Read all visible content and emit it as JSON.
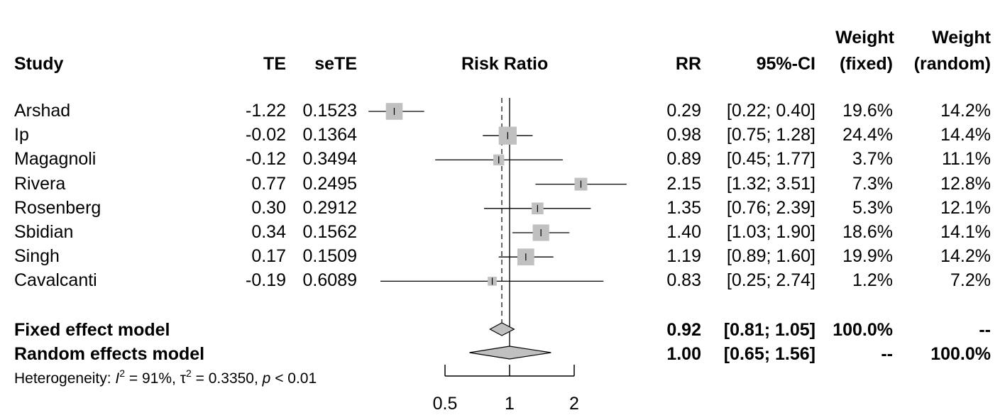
{
  "chart_data": {
    "type": "forest",
    "columns": {
      "study": "Study",
      "te": "TE",
      "sete": "seTE",
      "plot": "Risk Ratio",
      "rr": "RR",
      "ci": "95%-CI",
      "wf1": "Weight",
      "wf2": "(fixed)",
      "wr1": "Weight",
      "wr2": "(random)"
    },
    "studies": [
      {
        "name": "Arshad",
        "te": "-1.22",
        "sete": "0.1523",
        "rr_text": "0.29",
        "ci_text": "[0.22; 0.40]",
        "wf_text": "19.6%",
        "wr_text": "14.2%",
        "rr": 0.29,
        "lo": 0.22,
        "hi": 0.4,
        "wf": 19.6
      },
      {
        "name": "Ip",
        "te": "-0.02",
        "sete": "0.1364",
        "rr_text": "0.98",
        "ci_text": "[0.75; 1.28]",
        "wf_text": "24.4%",
        "wr_text": "14.4%",
        "rr": 0.98,
        "lo": 0.75,
        "hi": 1.28,
        "wf": 24.4
      },
      {
        "name": "Magagnoli",
        "te": "-0.12",
        "sete": "0.3494",
        "rr_text": "0.89",
        "ci_text": "[0.45; 1.77]",
        "wf_text": "3.7%",
        "wr_text": "11.1%",
        "rr": 0.89,
        "lo": 0.45,
        "hi": 1.77,
        "wf": 3.7
      },
      {
        "name": "Rivera",
        "te": "0.77",
        "sete": "0.2495",
        "rr_text": "2.15",
        "ci_text": "[1.32; 3.51]",
        "wf_text": "7.3%",
        "wr_text": "12.8%",
        "rr": 2.15,
        "lo": 1.32,
        "hi": 3.51,
        "wf": 7.3
      },
      {
        "name": "Rosenberg",
        "te": "0.30",
        "sete": "0.2912",
        "rr_text": "1.35",
        "ci_text": "[0.76; 2.39]",
        "wf_text": "5.3%",
        "wr_text": "12.1%",
        "rr": 1.35,
        "lo": 0.76,
        "hi": 2.39,
        "wf": 5.3
      },
      {
        "name": "Sbidian",
        "te": "0.34",
        "sete": "0.1562",
        "rr_text": "1.40",
        "ci_text": "[1.03; 1.90]",
        "wf_text": "18.6%",
        "wr_text": "14.1%",
        "rr": 1.4,
        "lo": 1.03,
        "hi": 1.9,
        "wf": 18.6
      },
      {
        "name": "Singh",
        "te": "0.17",
        "sete": "0.1509",
        "rr_text": "1.19",
        "ci_text": "[0.89; 1.60]",
        "wf_text": "19.9%",
        "wr_text": "14.2%",
        "rr": 1.19,
        "lo": 0.89,
        "hi": 1.6,
        "wf": 19.9
      },
      {
        "name": "Cavalcanti",
        "te": "-0.19",
        "sete": "0.6089",
        "rr_text": "0.83",
        "ci_text": "[0.25; 2.74]",
        "wf_text": "1.2%",
        "wr_text": "7.2%",
        "rr": 0.83,
        "lo": 0.25,
        "hi": 2.74,
        "wf": 1.2
      }
    ],
    "fixed": {
      "label": "Fixed effect model",
      "rr_text": "0.92",
      "ci_text": "[0.81; 1.05]",
      "wf_text": "100.0%",
      "wr_text": "--",
      "rr": 0.92,
      "lo": 0.81,
      "hi": 1.05
    },
    "random": {
      "label": "Random effects model",
      "rr_text": "1.00",
      "ci_text": "[0.65; 1.56]",
      "wf_text": "--",
      "wr_text": "100.0%",
      "rr": 1.0,
      "lo": 0.65,
      "hi": 1.56
    },
    "heterogeneity": {
      "prefix": "Heterogeneity: ",
      "i2_symbol": "I",
      "i2": "= 91%, ",
      "tau_symbol": "τ",
      "tau2": "= 0.3350, ",
      "p_symbol": "p",
      "p": "< 0.01"
    },
    "axis": {
      "scale": "log",
      "ticks": [
        0.5,
        1,
        2
      ],
      "tick_labels": [
        "0.5",
        "1",
        "2"
      ],
      "null_line": 1,
      "fixed_line": 0.92
    },
    "colors": {
      "box": "#c0c0c0",
      "diamond": "#c0c0c0",
      "line": "#000000"
    }
  }
}
